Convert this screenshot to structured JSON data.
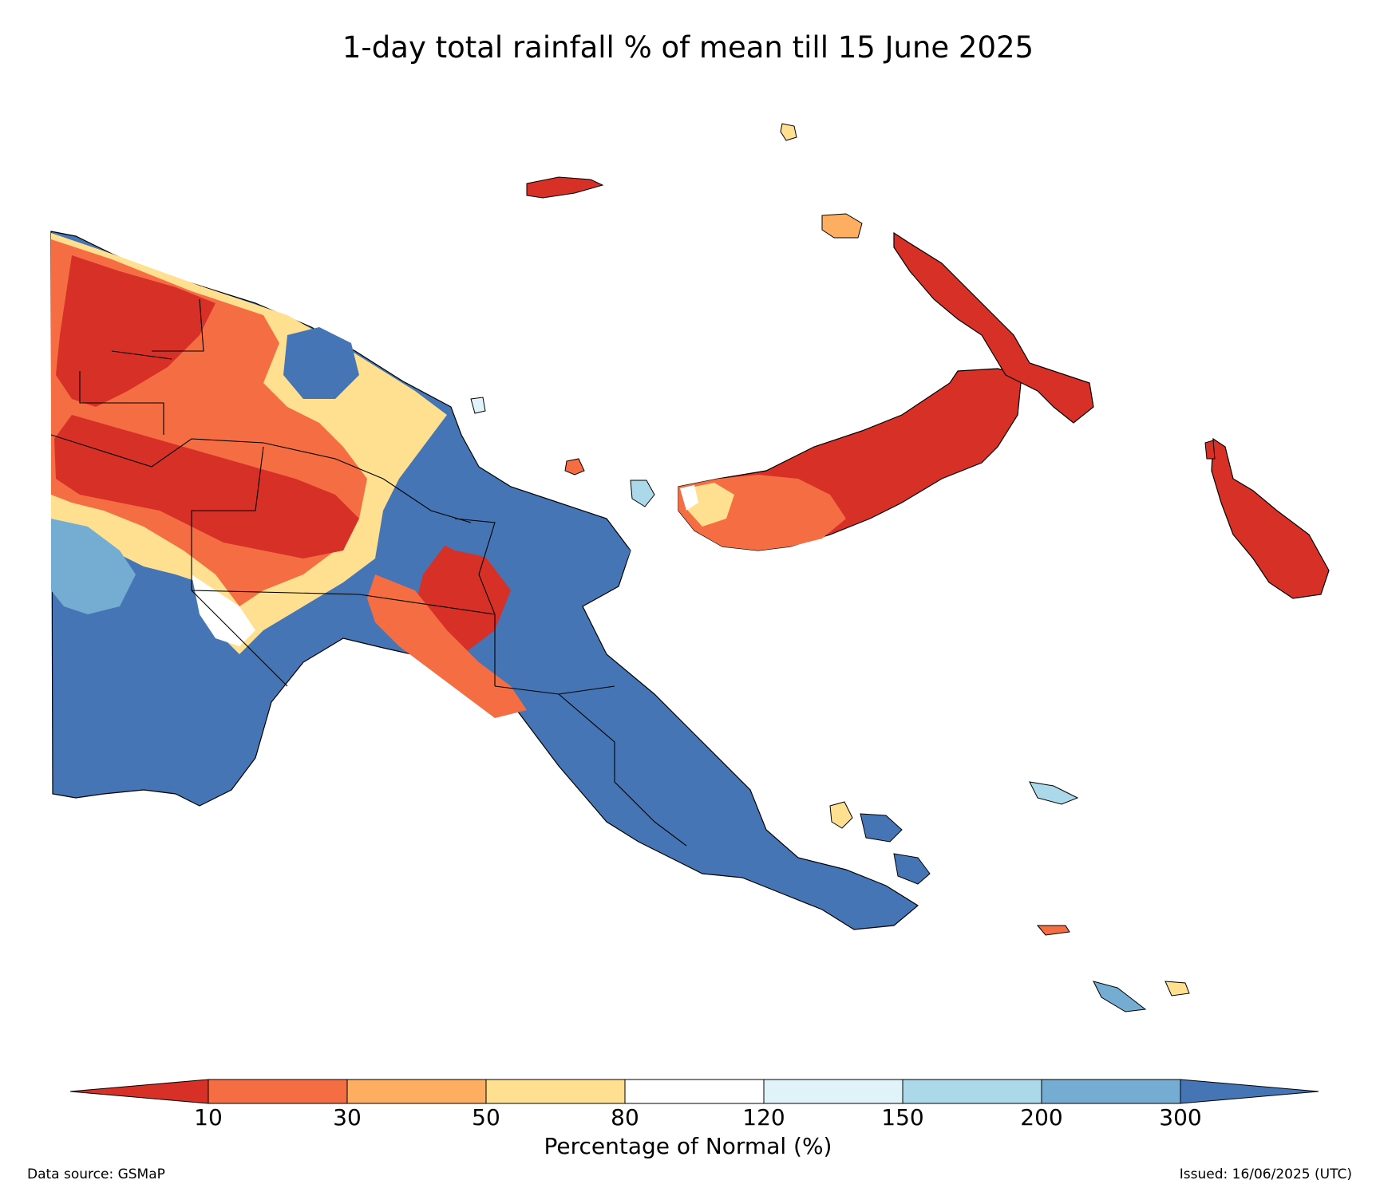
{
  "title": "1-day total rainfall % of mean till 15 June 2025",
  "colors": {
    "lt10": "#d73027",
    "c10_30": "#f46d43",
    "c30_50": "#fdae61",
    "c50_80": "#fee090",
    "c80_120": "#ffffff",
    "c120_150": "#e0f3f8",
    "c150_200": "#abd9e9",
    "c200_300": "#74add1",
    "gt300": "#4575b4"
  },
  "colorbar": {
    "label": "Percentage of Normal (%)",
    "ticks": [
      "10",
      "30",
      "50",
      "80",
      "120",
      "150",
      "200",
      "300"
    ]
  },
  "footer": {
    "source": "Data source: GSMaP",
    "issued": "Issued: 16/06/2025 (UTC)"
  }
}
